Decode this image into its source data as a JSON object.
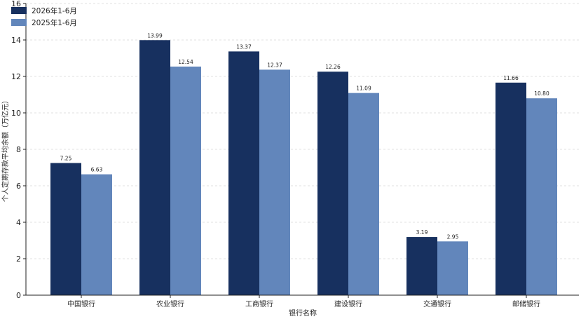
{
  "chart_data": {
    "type": "bar",
    "categories": [
      "中国银行",
      "农业银行",
      "工商银行",
      "建设银行",
      "交通银行",
      "邮储银行"
    ],
    "series": [
      {
        "name": "2026年1-6月",
        "values": [
          7.25,
          13.99,
          13.37,
          12.26,
          3.19,
          11.66
        ],
        "labels": [
          "7.25",
          "13.99",
          "13.37",
          "12.26",
          "3.19",
          "11.66"
        ],
        "color": "#17305f"
      },
      {
        "name": "2025年1-6月",
        "values": [
          6.63,
          12.54,
          12.37,
          11.09,
          2.95,
          10.8
        ],
        "labels": [
          "6.63",
          "12.54",
          "12.37",
          "11.09",
          "2.95",
          "10.80"
        ],
        "color": "#6286bb"
      }
    ],
    "xlabel": "银行名称",
    "ylabel": "个人定期存款平均余额（万亿元）",
    "ylim": [
      0,
      16
    ],
    "yticks": [
      0,
      2,
      4,
      6,
      8,
      10,
      12,
      14,
      16
    ],
    "grid": "horizontal-dashed",
    "legend": "top-left"
  }
}
